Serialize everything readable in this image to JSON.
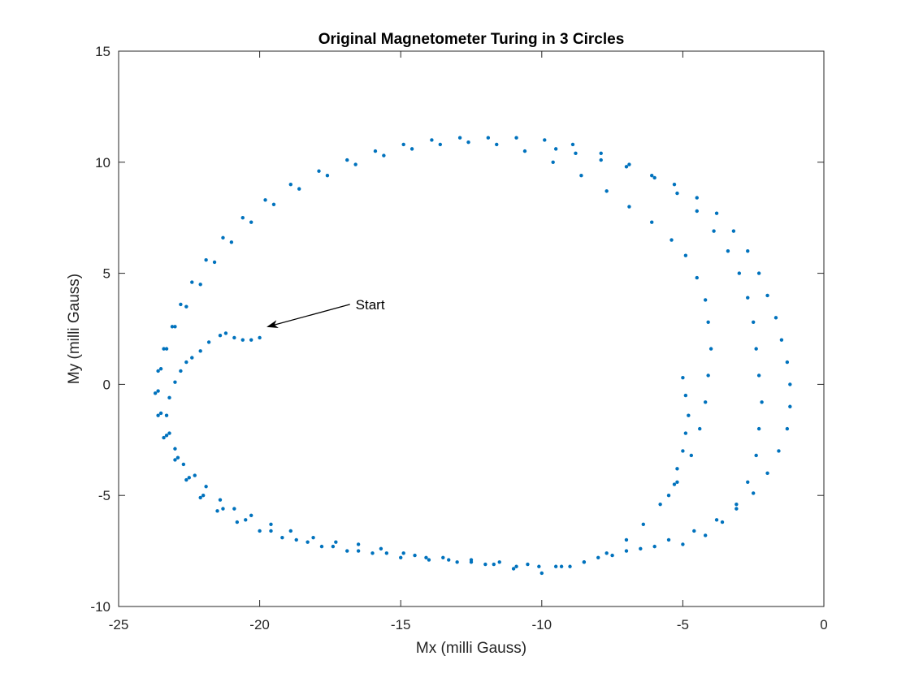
{
  "chart_data": {
    "type": "scatter",
    "title": "Original Magnetometer Turing in 3 Circles",
    "xlabel": "Mx (milli Gauss)",
    "ylabel": "My (milli Gauss)",
    "xlim": [
      -25,
      0
    ],
    "ylim": [
      -10,
      15
    ],
    "xticks": [
      -25,
      -20,
      -15,
      -10,
      -5,
      0
    ],
    "yticks": [
      -10,
      -5,
      0,
      5,
      10,
      15
    ],
    "xtick_labels": [
      "-25",
      "-20",
      "-15",
      "-10",
      "-5",
      "0"
    ],
    "ytick_labels": [
      "-10",
      "-5",
      "0",
      "5",
      "10",
      "15"
    ],
    "grid": false,
    "marker_color": "#0072BD",
    "annotation": {
      "text": "Start",
      "text_at": [
        -16.6,
        3.6
      ],
      "arrow_from": [
        -16.8,
        3.6
      ],
      "arrow_to": [
        -19.7,
        2.6
      ]
    },
    "series": [
      {
        "points": [
          [
            -20.0,
            2.1
          ],
          [
            -20.3,
            2.0
          ],
          [
            -20.6,
            2.0
          ],
          [
            -20.9,
            2.1
          ],
          [
            -21.2,
            2.3
          ],
          [
            -21.4,
            2.2
          ],
          [
            -21.8,
            1.9
          ],
          [
            -22.1,
            1.5
          ],
          [
            -22.4,
            1.2
          ],
          [
            -22.6,
            1.0
          ],
          [
            -22.8,
            0.6
          ],
          [
            -23.0,
            0.1
          ],
          [
            -23.2,
            -0.6
          ],
          [
            -23.3,
            -1.4
          ],
          [
            -23.2,
            -2.2
          ],
          [
            -23.0,
            -2.9
          ],
          [
            -22.7,
            -3.6
          ],
          [
            -22.3,
            -4.1
          ],
          [
            -21.9,
            -4.6
          ],
          [
            -21.4,
            -5.2
          ],
          [
            -20.9,
            -5.6
          ],
          [
            -20.3,
            -5.9
          ],
          [
            -19.6,
            -6.3
          ],
          [
            -18.9,
            -6.6
          ],
          [
            -18.1,
            -6.9
          ],
          [
            -17.3,
            -7.1
          ],
          [
            -16.5,
            -7.2
          ],
          [
            -15.7,
            -7.4
          ],
          [
            -14.9,
            -7.6
          ],
          [
            -14.1,
            -7.8
          ],
          [
            -13.3,
            -7.9
          ],
          [
            -12.5,
            -8.0
          ],
          [
            -11.7,
            -8.1
          ],
          [
            -10.9,
            -8.2
          ],
          [
            -10.1,
            -8.2
          ],
          [
            -9.3,
            -8.2
          ],
          [
            -8.5,
            -8.0
          ],
          [
            -7.7,
            -7.6
          ],
          [
            -7.0,
            -7.0
          ],
          [
            -6.4,
            -6.3
          ],
          [
            -5.8,
            -5.4
          ],
          [
            -5.2,
            -4.4
          ],
          [
            -4.7,
            -3.2
          ],
          [
            -4.4,
            -2.0
          ],
          [
            -4.2,
            -0.8
          ],
          [
            -4.1,
            0.4
          ],
          [
            -4.0,
            1.6
          ],
          [
            -4.1,
            2.8
          ],
          [
            -4.2,
            3.8
          ],
          [
            -4.5,
            4.8
          ],
          [
            -4.9,
            5.8
          ],
          [
            -5.4,
            6.5
          ],
          [
            -6.1,
            7.3
          ],
          [
            -6.9,
            8.0
          ],
          [
            -7.7,
            8.7
          ],
          [
            -8.6,
            9.4
          ],
          [
            -9.6,
            10.0
          ],
          [
            -10.6,
            10.5
          ],
          [
            -11.6,
            10.8
          ],
          [
            -12.6,
            10.9
          ],
          [
            -13.6,
            10.8
          ],
          [
            -14.6,
            10.6
          ],
          [
            -15.6,
            10.3
          ],
          [
            -16.6,
            9.9
          ],
          [
            -17.6,
            9.4
          ],
          [
            -18.6,
            8.8
          ],
          [
            -19.5,
            8.1
          ],
          [
            -20.3,
            7.3
          ],
          [
            -21.0,
            6.4
          ],
          [
            -21.6,
            5.5
          ],
          [
            -22.1,
            4.5
          ],
          [
            -22.6,
            3.5
          ],
          [
            -23.0,
            2.6
          ],
          [
            -23.3,
            1.6
          ],
          [
            -23.5,
            0.7
          ],
          [
            -23.6,
            -0.3
          ],
          [
            -23.5,
            -1.3
          ],
          [
            -23.3,
            -2.3
          ],
          [
            -22.9,
            -3.3
          ],
          [
            -22.5,
            -4.2
          ],
          [
            -22.0,
            -5.0
          ],
          [
            -21.3,
            -5.6
          ],
          [
            -20.5,
            -6.1
          ],
          [
            -19.6,
            -6.6
          ],
          [
            -18.7,
            -7.0
          ],
          [
            -17.8,
            -7.3
          ],
          [
            -16.9,
            -7.5
          ],
          [
            -16.0,
            -7.6
          ],
          [
            -15.0,
            -7.8
          ],
          [
            -14.0,
            -7.9
          ],
          [
            -13.0,
            -8.0
          ],
          [
            -12.0,
            -8.1
          ],
          [
            -11.0,
            -8.3
          ],
          [
            -10.0,
            -8.5
          ],
          [
            -9.0,
            -8.2
          ],
          [
            -8.0,
            -7.8
          ],
          [
            -7.0,
            -7.5
          ],
          [
            -6.0,
            -7.3
          ],
          [
            -5.0,
            -7.2
          ],
          [
            -4.2,
            -6.8
          ],
          [
            -3.6,
            -6.2
          ],
          [
            -3.1,
            -5.4
          ],
          [
            -2.7,
            -4.4
          ],
          [
            -2.4,
            -3.2
          ],
          [
            -2.3,
            -2.0
          ],
          [
            -2.2,
            -0.8
          ],
          [
            -2.3,
            0.4
          ],
          [
            -2.4,
            1.6
          ],
          [
            -2.5,
            2.8
          ],
          [
            -2.7,
            3.9
          ],
          [
            -3.0,
            5.0
          ],
          [
            -3.4,
            6.0
          ],
          [
            -3.9,
            6.9
          ],
          [
            -4.5,
            7.8
          ],
          [
            -5.2,
            8.6
          ],
          [
            -6.0,
            9.3
          ],
          [
            -6.9,
            9.9
          ],
          [
            -7.9,
            10.4
          ],
          [
            -8.9,
            10.8
          ],
          [
            -9.9,
            11.0
          ],
          [
            -10.9,
            11.1
          ],
          [
            -11.9,
            11.1
          ],
          [
            -12.9,
            11.1
          ],
          [
            -13.9,
            11.0
          ],
          [
            -14.9,
            10.8
          ],
          [
            -15.9,
            10.5
          ],
          [
            -16.9,
            10.1
          ],
          [
            -17.9,
            9.6
          ],
          [
            -18.9,
            9.0
          ],
          [
            -19.8,
            8.3
          ],
          [
            -20.6,
            7.5
          ],
          [
            -21.3,
            6.6
          ],
          [
            -21.9,
            5.6
          ],
          [
            -22.4,
            4.6
          ],
          [
            -22.8,
            3.6
          ],
          [
            -23.1,
            2.6
          ],
          [
            -23.4,
            1.6
          ],
          [
            -23.6,
            0.6
          ],
          [
            -23.7,
            -0.4
          ],
          [
            -23.6,
            -1.4
          ],
          [
            -23.4,
            -2.4
          ],
          [
            -23.0,
            -3.4
          ],
          [
            -22.6,
            -4.3
          ],
          [
            -22.1,
            -5.1
          ],
          [
            -21.5,
            -5.7
          ],
          [
            -20.8,
            -6.2
          ],
          [
            -20.0,
            -6.6
          ],
          [
            -19.2,
            -6.9
          ],
          [
            -18.3,
            -7.1
          ],
          [
            -17.4,
            -7.3
          ],
          [
            -16.5,
            -7.5
          ],
          [
            -15.5,
            -7.6
          ],
          [
            -14.5,
            -7.7
          ],
          [
            -13.5,
            -7.8
          ],
          [
            -12.5,
            -7.9
          ],
          [
            -11.5,
            -8.0
          ],
          [
            -10.5,
            -8.1
          ],
          [
            -9.5,
            -8.2
          ],
          [
            -8.5,
            -8.0
          ],
          [
            -7.5,
            -7.7
          ],
          [
            -6.5,
            -7.4
          ],
          [
            -5.5,
            -7.0
          ],
          [
            -4.6,
            -6.6
          ],
          [
            -3.8,
            -6.1
          ],
          [
            -3.1,
            -5.6
          ],
          [
            -2.5,
            -4.9
          ],
          [
            -2.0,
            -4.0
          ],
          [
            -1.6,
            -3.0
          ],
          [
            -1.3,
            -2.0
          ],
          [
            -1.2,
            -1.0
          ],
          [
            -1.2,
            0.0
          ],
          [
            -1.3,
            1.0
          ],
          [
            -1.5,
            2.0
          ],
          [
            -1.7,
            3.0
          ],
          [
            -2.0,
            4.0
          ],
          [
            -2.3,
            5.0
          ],
          [
            -2.7,
            6.0
          ],
          [
            -3.2,
            6.9
          ],
          [
            -3.8,
            7.7
          ],
          [
            -4.5,
            8.4
          ],
          [
            -5.3,
            9.0
          ],
          [
            -6.1,
            9.4
          ],
          [
            -7.0,
            9.8
          ],
          [
            -7.9,
            10.1
          ],
          [
            -8.8,
            10.4
          ],
          [
            -9.5,
            10.6
          ],
          [
            -5.0,
            0.3
          ],
          [
            -4.9,
            -0.5
          ],
          [
            -4.8,
            -1.4
          ],
          [
            -4.9,
            -2.2
          ],
          [
            -5.0,
            -3.0
          ],
          [
            -5.2,
            -3.8
          ],
          [
            -5.3,
            -4.5
          ],
          [
            -5.5,
            -5.0
          ]
        ]
      }
    ]
  }
}
